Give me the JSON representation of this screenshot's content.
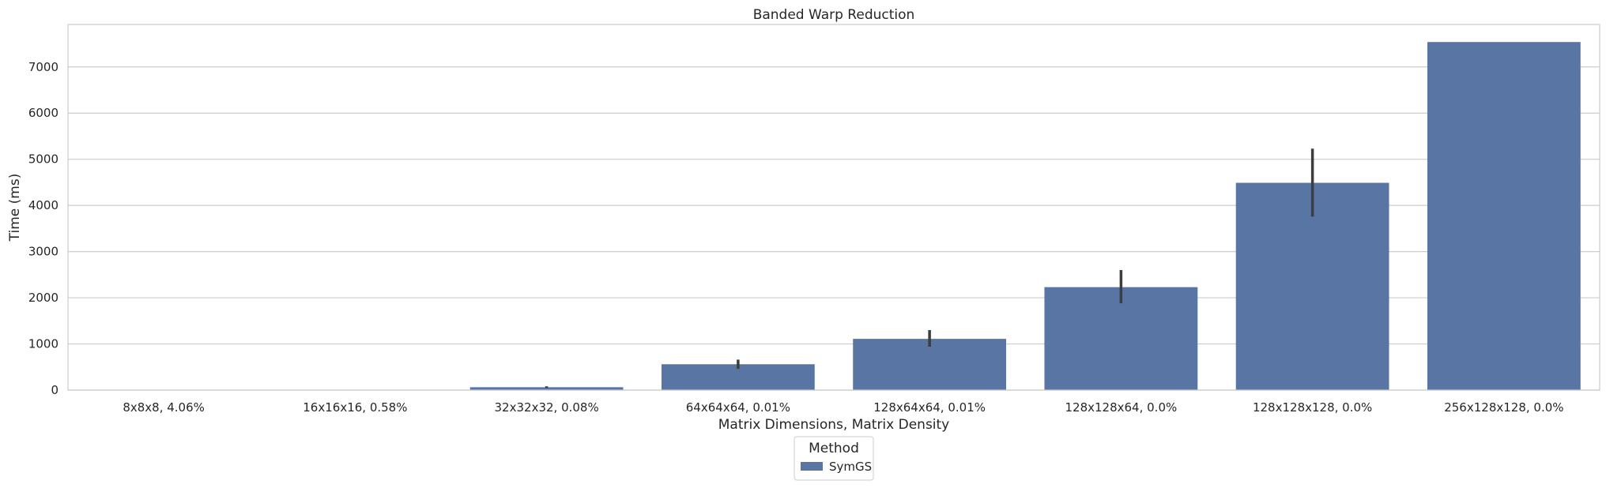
{
  "chart_data": {
    "type": "bar",
    "title": "Banded Warp Reduction",
    "xlabel": "Matrix Dimensions, Matrix Density",
    "ylabel": "Time (ms)",
    "categories": [
      "8x8x8, 4.06%",
      "16x16x16, 0.58%",
      "32x32x32, 0.08%",
      "64x64x64, 0.01%",
      "128x64x64, 0.01%",
      "128x128x64, 0.0%",
      "128x128x128, 0.0%",
      "256x128x128, 0.0%"
    ],
    "series": [
      {
        "name": "SymGS",
        "color": "#5875a4",
        "values": [
          2,
          8,
          62,
          560,
          1110,
          2230,
          4490,
          7540
        ],
        "error_low": [
          null,
          null,
          45,
          460,
          940,
          1880,
          3760,
          null
        ],
        "error_high": [
          null,
          null,
          82,
          660,
          1300,
          2600,
          5230,
          null
        ]
      }
    ],
    "yticks": [
      0,
      1000,
      2000,
      3000,
      4000,
      5000,
      6000,
      7000
    ],
    "ylim": [
      0,
      7920
    ],
    "grid": true,
    "legend": {
      "title": "Method",
      "position": "bottom-center"
    }
  }
}
